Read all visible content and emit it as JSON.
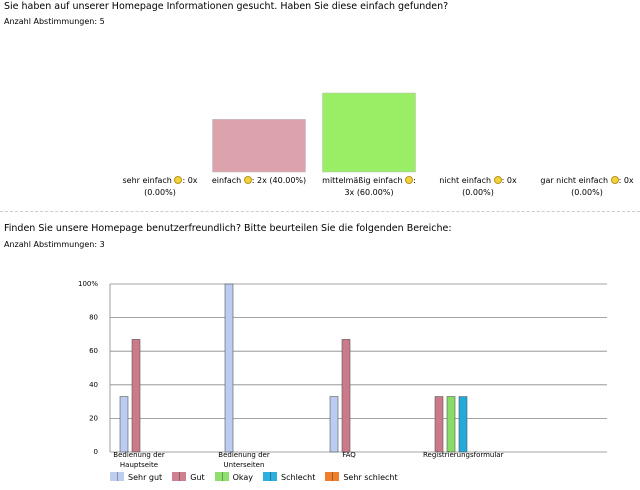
{
  "chart_data": [
    {
      "type": "bar",
      "title": "Sie haben auf unserer Homepage Informationen gesucht. Haben Sie diese einfach gefunden?",
      "subtitle": "Anzahl Abstimmungen: 5",
      "categories": [
        "sehr einfach",
        "einfach",
        "mittelmäßig einfach",
        "nicht einfach",
        "gar nicht einfach"
      ],
      "values": [
        0,
        2,
        3,
        0,
        0
      ],
      "value_labels": [
        "0x",
        "2x",
        "3x",
        "0x",
        "0x"
      ],
      "percentages": [
        0,
        40,
        60,
        0,
        0
      ],
      "percentage_labels": [
        "(0.00%)",
        "(40.00%)",
        "(60.00%)",
        "(0.00%)",
        "(0.00%)"
      ],
      "colors": [
        "#aabbee",
        "#dda3ad",
        "#99ee66",
        "#22aadd",
        "#ee7722"
      ]
    },
    {
      "type": "grouped_bar",
      "title": "Finden Sie unsere Homepage benutzerfreundlich? Bitte beurteilen Sie die folgenden Bereiche:",
      "subtitle": "Anzahl Abstimmungen: 3",
      "categories": [
        "Bedienung der Hauptseite",
        "Bedienung der Unterseiten",
        "FAQ",
        "Registrierungsformular"
      ],
      "series": [
        {
          "name": "Sehr gut",
          "color": "#bbccf0",
          "values": [
            33,
            100,
            33,
            0
          ]
        },
        {
          "name": "Gut",
          "color": "#cc7a8a",
          "values": [
            67,
            0,
            67,
            33
          ]
        },
        {
          "name": "Okay",
          "color": "#88dd66",
          "values": [
            0,
            0,
            0,
            33
          ]
        },
        {
          "name": "Schlecht",
          "color": "#22aadd",
          "values": [
            0,
            0,
            0,
            33
          ]
        },
        {
          "name": "Sehr schlecht",
          "color": "#ee7722",
          "values": [
            0,
            0,
            0,
            0
          ]
        }
      ],
      "ylim": [
        0,
        100
      ],
      "yticks": [
        0,
        20,
        40,
        60,
        80,
        {
          "value": 100,
          "label": "100%"
        }
      ],
      "grid": true
    }
  ]
}
